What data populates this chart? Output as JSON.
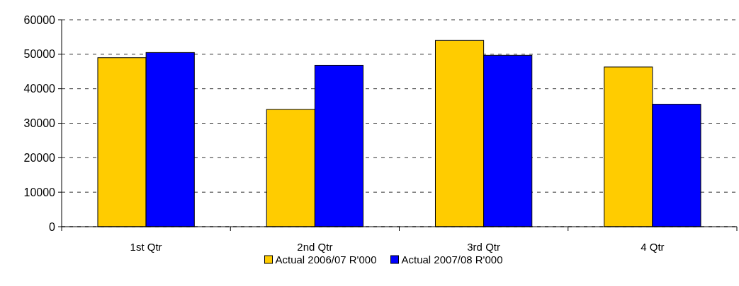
{
  "chart_data": {
    "type": "bar",
    "categories": [
      "1st Qtr",
      "2nd Qtr",
      "3rd Qtr",
      "4 Qtr"
    ],
    "series": [
      {
        "name": "Actual 2006/07 R'000",
        "color": "#ffcc00",
        "values": [
          49000,
          34000,
          54000,
          46300
        ]
      },
      {
        "name": "Actual 2007/08 R'000",
        "color": "#0000ff",
        "values": [
          50500,
          46800,
          49700,
          35500
        ]
      }
    ],
    "ylim": [
      0,
      60000
    ],
    "yticks": [
      0,
      10000,
      20000,
      30000,
      40000,
      50000,
      60000
    ],
    "grid": "y",
    "legend": "bottom"
  }
}
